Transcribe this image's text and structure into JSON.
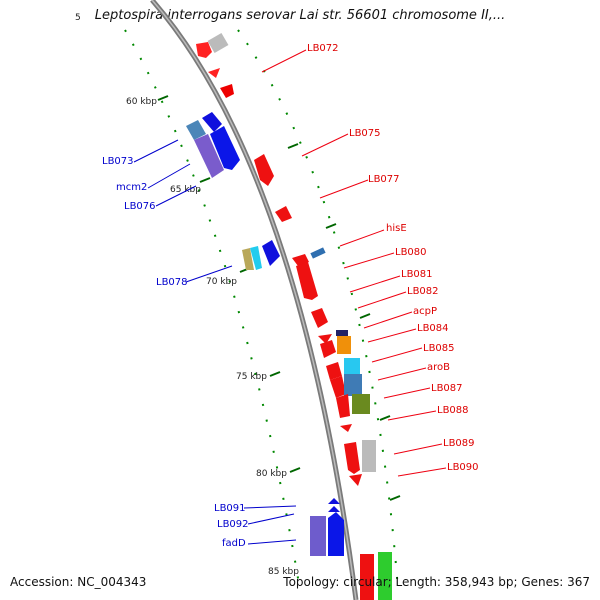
{
  "title": "Leptospira interrogans serovar Lai str. 56601 chromosome II,...",
  "footer": {
    "accession": "Accession: NC_004343",
    "summary": "Topology: circular; Length: 358,943 bp; Genes: 367"
  },
  "ticks": [
    "5",
    "60 kbp",
    "65 kbp",
    "70 kbp",
    "75 kbp",
    "80 kbp",
    "85 kbp"
  ],
  "colors": {
    "backbone": "#888888",
    "minus_strand_label": "#0000cc",
    "plus_strand_label": "#dd0000",
    "tick": "#007700"
  },
  "labels": {
    "right": [
      "LB072",
      "LB075",
      "LB077",
      "hisE",
      "LB080",
      "LB081",
      "LB082",
      "acpP",
      "LB084",
      "LB085",
      "aroB",
      "LB087",
      "LB088",
      "LB089",
      "LB090"
    ],
    "left": [
      "LB073",
      "mcm2",
      "LB076",
      "LB078",
      "LB091",
      "LB092",
      "fadD"
    ]
  }
}
